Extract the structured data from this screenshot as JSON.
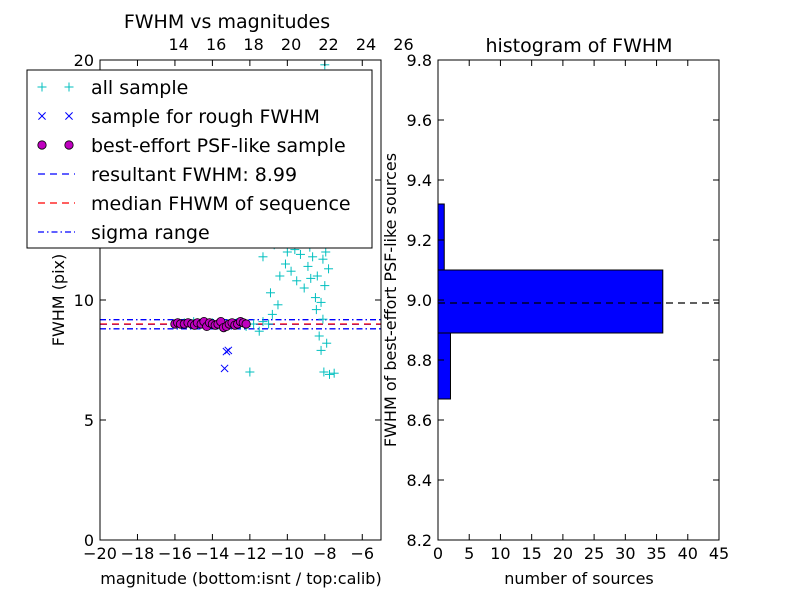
{
  "chart_data": [
    {
      "type": "scatter",
      "title": "FWHM vs magnitudes",
      "xlabel": "magnitude (bottom:isnt / top:calib)",
      "ylabel": "FWHM (pix)",
      "xlim": [
        -20,
        -5
      ],
      "ylim": [
        0,
        20
      ],
      "x_ticks": [
        -20,
        -18,
        -16,
        -14,
        -12,
        -10,
        -8,
        -6
      ],
      "x_tick_labels": [
        "−20",
        "−18",
        "−16",
        "−14",
        "−12",
        "−10",
        "−8",
        "−6"
      ],
      "y_ticks": [
        0,
        5,
        10,
        15,
        20
      ],
      "y_tick_labels": [
        "0",
        "5",
        "10",
        "",
        "20"
      ],
      "top_axis": {
        "ticks": [
          14,
          16,
          18,
          20,
          22,
          24,
          26
        ],
        "tick_labels": [
          "14",
          "16",
          "18",
          "20",
          "22",
          "24",
          "26"
        ],
        "offset": 29.8
      },
      "legend": {
        "placement": "upper-left",
        "entries": [
          {
            "label": "all sample",
            "marker": "+",
            "color": "#00bfbf"
          },
          {
            "label": "sample for rough FWHM",
            "marker": "x",
            "color": "#0000ff"
          },
          {
            "label": "best-effort PSF-like sample",
            "marker": "o",
            "color": "#bf00bf"
          },
          {
            "label": "resultant FWHM: 8.99",
            "line": "dashed",
            "color": "#0000ff"
          },
          {
            "label": "median FHWM of sequence",
            "line": "dashed",
            "color": "#ff0000"
          },
          {
            "label": "sigma range",
            "line": "dashdot",
            "color": "#0000ff"
          }
        ]
      },
      "series": [
        {
          "name": "all sample",
          "marker": "+",
          "color": "#00bfbf",
          "points": [
            [
              -16.0,
              9.0
            ],
            [
              -15.7,
              9.0
            ],
            [
              -15.5,
              9.05
            ],
            [
              -15.2,
              9.0
            ],
            [
              -15.0,
              9.1
            ],
            [
              -14.8,
              9.0
            ],
            [
              -14.6,
              9.05
            ],
            [
              -14.3,
              9.0
            ],
            [
              -14.0,
              9.05
            ],
            [
              -13.8,
              8.95
            ],
            [
              -13.5,
              9.0
            ],
            [
              -13.2,
              9.0
            ],
            [
              -13.0,
              9.0
            ],
            [
              -12.7,
              9.05
            ],
            [
              -12.5,
              9.0
            ],
            [
              -12.2,
              8.9
            ],
            [
              -12.0,
              7.0
            ],
            [
              -11.8,
              9.0
            ],
            [
              -11.5,
              8.7
            ],
            [
              -11.3,
              9.1
            ],
            [
              -11.3,
              11.8
            ],
            [
              -11.0,
              9.0
            ],
            [
              -10.9,
              10.3
            ],
            [
              -10.8,
              9.4
            ],
            [
              -10.7,
              12.3
            ],
            [
              -10.5,
              9.8
            ],
            [
              -10.4,
              11.0
            ],
            [
              -10.3,
              12.5
            ],
            [
              -10.2,
              13.0
            ],
            [
              -10.1,
              11.5
            ],
            [
              -10.0,
              12.0
            ],
            [
              -9.9,
              12.8
            ],
            [
              -9.8,
              11.2
            ],
            [
              -9.7,
              13.5
            ],
            [
              -9.6,
              12.1
            ],
            [
              -9.5,
              10.8
            ],
            [
              -9.4,
              12.6
            ],
            [
              -9.3,
              11.9
            ],
            [
              -9.2,
              13.8
            ],
            [
              -9.1,
              10.5
            ],
            [
              -9.0,
              12.9
            ],
            [
              -8.95,
              14.0
            ],
            [
              -8.9,
              11.4
            ],
            [
              -8.85,
              13.2
            ],
            [
              -8.8,
              12.2
            ],
            [
              -8.75,
              10.9
            ],
            [
              -8.7,
              14.2
            ],
            [
              -8.65,
              11.8
            ],
            [
              -8.6,
              13.9
            ],
            [
              -8.55,
              12.4
            ],
            [
              -8.5,
              10.1
            ],
            [
              -8.45,
              9.6
            ],
            [
              -8.4,
              11.0
            ],
            [
              -8.35,
              13.1
            ],
            [
              -8.3,
              8.5
            ],
            [
              -8.25,
              12.7
            ],
            [
              -8.2,
              7.9
            ],
            [
              -8.15,
              14.5
            ],
            [
              -8.1,
              9.2
            ],
            [
              -8.05,
              7.0
            ],
            [
              -8.0,
              10.6
            ],
            [
              -7.95,
              12.0
            ],
            [
              -7.9,
              8.2
            ],
            [
              -7.85,
              13.6
            ],
            [
              -7.8,
              11.3
            ],
            [
              -7.75,
              6.9
            ],
            [
              -8.0,
              19.8
            ],
            [
              -7.5,
              6.95
            ],
            [
              -8.2,
              9.9
            ],
            [
              -8.1,
              11.7
            ]
          ]
        },
        {
          "name": "sample for rough FWHM",
          "marker": "x",
          "color": "#0000ff",
          "points": [
            [
              -13.35,
              7.15
            ],
            [
              -13.25,
              7.85
            ],
            [
              -13.15,
              7.9
            ]
          ]
        },
        {
          "name": "best-effort PSF-like sample",
          "marker": "o",
          "color": "#bf00bf",
          "points": [
            [
              -16.0,
              9.0
            ],
            [
              -15.85,
              9.05
            ],
            [
              -15.7,
              9.0
            ],
            [
              -15.5,
              9.0
            ],
            [
              -15.3,
              9.05
            ],
            [
              -15.1,
              9.0
            ],
            [
              -14.95,
              8.95
            ],
            [
              -14.8,
              9.05
            ],
            [
              -14.6,
              9.0
            ],
            [
              -14.45,
              9.1
            ],
            [
              -14.3,
              8.9
            ],
            [
              -14.15,
              9.05
            ],
            [
              -14.0,
              9.0
            ],
            [
              -13.85,
              8.95
            ],
            [
              -13.7,
              9.0
            ],
            [
              -13.55,
              9.1
            ],
            [
              -13.4,
              8.85
            ],
            [
              -13.25,
              8.9
            ],
            [
              -13.1,
              9.0
            ],
            [
              -12.95,
              9.05
            ],
            [
              -12.8,
              8.95
            ],
            [
              -12.65,
              9.0
            ],
            [
              -12.5,
              9.1
            ],
            [
              -12.35,
              9.05
            ],
            [
              -12.2,
              9.0
            ]
          ]
        }
      ],
      "lines": [
        {
          "name": "resultant FWHM: 8.99",
          "y": 8.99,
          "style": "dashed",
          "color": "#0000ff"
        },
        {
          "name": "median FHWM of sequence",
          "y": 9.0,
          "style": "dashed",
          "color": "#ff0000"
        },
        {
          "name": "sigma range upper",
          "y": 9.18,
          "style": "dashdot",
          "color": "#0000ff"
        },
        {
          "name": "sigma range lower",
          "y": 8.8,
          "style": "dashdot",
          "color": "#0000ff"
        }
      ]
    },
    {
      "type": "bar",
      "orientation": "horizontal",
      "title": "histogram of FWHM",
      "xlabel": "number of sources",
      "ylabel": "FWHM of best-effort PSF-like sources",
      "xlim": [
        0,
        45
      ],
      "ylim": [
        8.2,
        9.8
      ],
      "x_ticks": [
        0,
        5,
        10,
        15,
        20,
        25,
        30,
        35,
        40,
        45
      ],
      "x_tick_labels": [
        "0",
        "5",
        "10",
        "15",
        "20",
        "25",
        "30",
        "35",
        "40",
        "45"
      ],
      "y_ticks": [
        8.2,
        8.4,
        8.6,
        8.8,
        9.0,
        9.2,
        9.4,
        9.6,
        9.8
      ],
      "y_tick_labels": [
        "8.2",
        "8.4",
        "8.6",
        "8.8",
        "9.0",
        "9.2",
        "9.4",
        "9.6",
        "9.8"
      ],
      "bars": [
        {
          "bin_low": 8.67,
          "bin_high": 8.89,
          "count": 2
        },
        {
          "bin_low": 8.89,
          "bin_high": 9.1,
          "count": 36
        },
        {
          "bin_low": 9.1,
          "bin_high": 9.32,
          "count": 1
        }
      ],
      "bar_color": "#0000ff",
      "reference_line": {
        "y": 8.99,
        "style": "dashed",
        "color": "#000000"
      }
    }
  ]
}
